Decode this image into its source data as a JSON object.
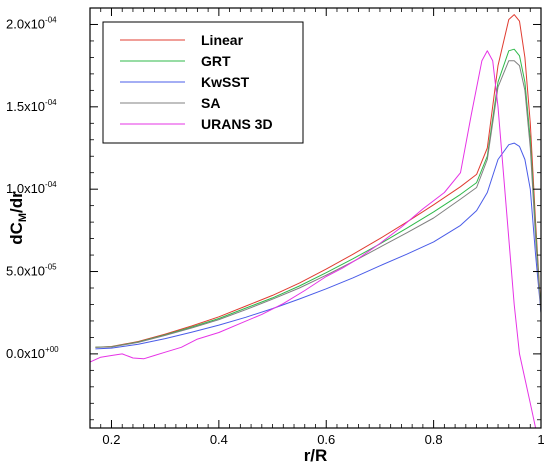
{
  "chart_data": {
    "type": "line",
    "xlabel": "r/R",
    "ylabel": {
      "main": "dC",
      "sub": "M",
      "rest": "/dr"
    },
    "xlim": [
      0.16,
      1.0
    ],
    "ylim": [
      -4.5e-05,
      0.00021
    ],
    "x_ticks": [
      {
        "value": 0.2,
        "label": "0.2"
      },
      {
        "value": 0.4,
        "label": "0.4"
      },
      {
        "value": 0.6,
        "label": "0.6"
      },
      {
        "value": 0.8,
        "label": "0.8"
      },
      {
        "value": 1.0,
        "label": "1"
      }
    ],
    "y_ticks": [
      {
        "value": 0.0,
        "mantissa": "0.0x10",
        "exponent": "+00"
      },
      {
        "value": 5e-05,
        "mantissa": "5.0x10",
        "exponent": "-05"
      },
      {
        "value": 0.0001,
        "mantissa": "1.0x10",
        "exponent": "-04"
      },
      {
        "value": 0.00015,
        "mantissa": "1.5x10",
        "exponent": "-04"
      },
      {
        "value": 0.0002,
        "mantissa": "2.0x10",
        "exponent": "-04"
      }
    ],
    "grid": false,
    "legend_position": "top-left",
    "series": [
      {
        "name": "Linear",
        "color": "#e03c31",
        "x": [
          0.17,
          0.2,
          0.25,
          0.3,
          0.35,
          0.4,
          0.45,
          0.5,
          0.55,
          0.6,
          0.65,
          0.7,
          0.75,
          0.8,
          0.85,
          0.88,
          0.9,
          0.92,
          0.94,
          0.95,
          0.96,
          0.97,
          0.98,
          0.99,
          1.0
        ],
        "y": [
          4e-06,
          4.5e-06,
          7.5e-06,
          1.2e-05,
          1.7e-05,
          2.25e-05,
          2.9e-05,
          3.55e-05,
          4.3e-05,
          5.15e-05,
          6.05e-05,
          7e-05,
          8e-05,
          9.05e-05,
          0.0001015,
          0.000109,
          0.000125,
          0.000175,
          0.000203,
          0.000206,
          0.000202,
          0.00018,
          0.00014,
          8e-05,
          2.5e-05
        ]
      },
      {
        "name": "GRT",
        "color": "#2fb94a",
        "x": [
          0.17,
          0.2,
          0.25,
          0.3,
          0.35,
          0.4,
          0.45,
          0.5,
          0.55,
          0.6,
          0.65,
          0.7,
          0.75,
          0.8,
          0.85,
          0.88,
          0.9,
          0.92,
          0.94,
          0.95,
          0.96,
          0.97,
          0.98,
          0.99,
          1.0
        ],
        "y": [
          4e-06,
          4.3e-06,
          7.2e-06,
          1.15e-05,
          1.63e-05,
          2.15e-05,
          2.78e-05,
          3.4e-05,
          4.12e-05,
          4.93e-05,
          5.78e-05,
          6.68e-05,
          7.63e-05,
          8.62e-05,
          9.68e-05,
          0.000104,
          0.00012,
          0.000165,
          0.000184,
          0.000185,
          0.000181,
          0.000165,
          0.00013,
          7.5e-05,
          2.5e-05
        ]
      },
      {
        "name": "KwSST",
        "color": "#4a5ce8",
        "x": [
          0.17,
          0.2,
          0.25,
          0.3,
          0.35,
          0.4,
          0.45,
          0.5,
          0.55,
          0.6,
          0.65,
          0.7,
          0.75,
          0.8,
          0.85,
          0.88,
          0.9,
          0.92,
          0.94,
          0.95,
          0.96,
          0.97,
          0.98,
          0.99,
          1.0
        ],
        "y": [
          3e-06,
          3.5e-06,
          5.8e-06,
          9.3e-06,
          1.32e-05,
          1.75e-05,
          2.22e-05,
          2.75e-05,
          3.33e-05,
          3.95e-05,
          4.62e-05,
          5.35e-05,
          6.05e-05,
          6.8e-05,
          7.8e-05,
          8.7e-05,
          9.8e-05,
          0.000118,
          0.000127,
          0.000128,
          0.000126,
          0.000118,
          0.0001,
          6e-05,
          2.5e-05
        ]
      },
      {
        "name": "SA",
        "color": "#808080",
        "x": [
          0.17,
          0.2,
          0.25,
          0.3,
          0.35,
          0.4,
          0.45,
          0.5,
          0.55,
          0.6,
          0.65,
          0.7,
          0.75,
          0.8,
          0.85,
          0.88,
          0.9,
          0.92,
          0.94,
          0.95,
          0.96,
          0.97,
          0.98,
          0.99,
          1.0
        ],
        "y": [
          4e-06,
          4.2e-06,
          7e-06,
          1.12e-05,
          1.58e-05,
          2.08e-05,
          2.68e-05,
          3.32e-05,
          4e-05,
          4.78e-05,
          5.6e-05,
          6.48e-05,
          7.35e-05,
          8.25e-05,
          9.4e-05,
          0.000101,
          0.000118,
          0.000162,
          0.000178,
          0.000178,
          0.000175,
          0.00016,
          0.000125,
          7e-05,
          2.5e-05
        ]
      },
      {
        "name": "URANS 3D",
        "color": "#e633e6",
        "x": [
          0.16,
          0.18,
          0.2,
          0.22,
          0.24,
          0.26,
          0.28,
          0.3,
          0.33,
          0.36,
          0.4,
          0.44,
          0.48,
          0.52,
          0.56,
          0.6,
          0.63,
          0.66,
          0.7,
          0.74,
          0.78,
          0.82,
          0.85,
          0.87,
          0.89,
          0.9,
          0.91,
          0.92,
          0.93,
          0.94,
          0.95,
          0.96,
          0.97,
          0.98,
          0.99,
          1.0
        ],
        "y": [
          -5e-06,
          -2e-06,
          -1e-06,
          0.0,
          -2.5e-06,
          -3e-06,
          -1e-06,
          1e-06,
          4e-06,
          9e-06,
          1.3e-05,
          1.85e-05,
          2.4e-05,
          3.05e-05,
          3.85e-05,
          4.7e-05,
          5.2e-05,
          5.8e-05,
          6.7e-05,
          7.7e-05,
          8.8e-05,
          9.8e-05,
          0.00011,
          0.000145,
          0.000178,
          0.000184,
          0.000178,
          0.00015,
          0.00011,
          7e-05,
          3e-05,
          0.0,
          -1.5e-05,
          -3e-05,
          -4.5e-05,
          -5e-05
        ]
      }
    ]
  }
}
